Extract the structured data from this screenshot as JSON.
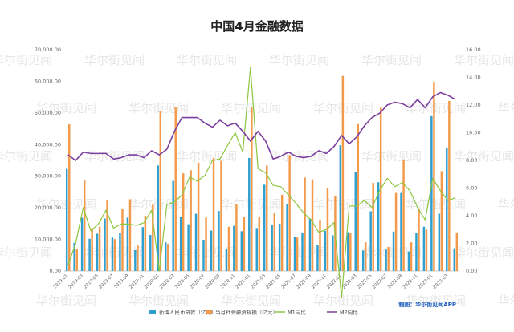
{
  "chart_data": {
    "type": "bar+line",
    "title": "中国4月金融数据",
    "credit": "制图：华尔街见闻APP",
    "watermark": "华尔街见闻",
    "y_left": {
      "ticks": [
        "0.00",
        "10,000.00",
        "20,000.00",
        "30,000.00",
        "40,000.00",
        "50,000.00",
        "60,000.00",
        "70,000.00"
      ],
      "min": 0,
      "max": 70000
    },
    "y_right": {
      "ticks": [
        "0.00",
        "2.00",
        "4.00",
        "6.00",
        "8.00",
        "10.00",
        "12.00",
        "14.00",
        "16.00"
      ],
      "min": 0,
      "max": 16
    },
    "categories": [
      "2019-01",
      "2019-02",
      "2019-03",
      "2019-04",
      "2019-05",
      "2019-06",
      "2019-07",
      "2019-08",
      "2019-09",
      "2019-10",
      "2019-11",
      "2019-12",
      "2020-01",
      "2020-02",
      "2020-03",
      "2020-04",
      "2020-05",
      "2020-06",
      "2020-07",
      "2020-08",
      "2020-09",
      "2020-10",
      "2020-11",
      "2020-12",
      "2021-01",
      "2021-02",
      "2021-03",
      "2021-04",
      "2021-05",
      "2021-06",
      "2021-07",
      "2021-08",
      "2021-09",
      "2021-10",
      "2021-11",
      "2021-12",
      "2022-01",
      "2022-02",
      "2022-03",
      "2022-04",
      "2022-05",
      "2022-06",
      "2022-07",
      "2022-08",
      "2022-09",
      "2022-10",
      "2022-11",
      "2022-12",
      "2023-01",
      "2023-02",
      "2023-03",
      "2023-04"
    ],
    "x_tick_labels": [
      "2019-01",
      "2019-03",
      "2019-05",
      "2019-07",
      "2019-09",
      "2019-11",
      "2020-01",
      "2020-03",
      "2020-05",
      "2020-07",
      "2020-09",
      "2020-11",
      "2021-01",
      "2021-03",
      "2021-05",
      "2021-07",
      "2021-09",
      "2021-11",
      "2022-01",
      "2022-03",
      "2022-05",
      "2022-07",
      "2022-09",
      "2022-11",
      "2023-01",
      "2023-03"
    ],
    "series": [
      {
        "name": "新增人民币贷款（亿元）",
        "type": "bar",
        "axis": "left",
        "color": "#2f9fd0",
        "values": [
          32300,
          8900,
          16900,
          10200,
          11800,
          16600,
          10600,
          12100,
          16900,
          6600,
          13900,
          11400,
          33400,
          9100,
          28500,
          17000,
          14800,
          18100,
          9900,
          12800,
          19000,
          6900,
          14300,
          12600,
          35800,
          13600,
          27300,
          14700,
          15000,
          21200,
          10800,
          12200,
          16600,
          8300,
          12700,
          11300,
          39800,
          12300,
          31300,
          6500,
          18900,
          28100,
          6800,
          12500,
          24700,
          6200,
          12100,
          14000,
          49000,
          18100,
          38900,
          7188
        ],
        "peak": {
          "index": 48,
          "value": 49000
        }
      },
      {
        "name": "当月社会融资规模（亿元）",
        "type": "bar",
        "axis": "left",
        "color": "#f39a4a",
        "values": [
          46400,
          7000,
          28600,
          13600,
          14000,
          22600,
          10100,
          19800,
          22700,
          8100,
          17500,
          21000,
          50700,
          8600,
          51800,
          30900,
          31900,
          34300,
          16900,
          35800,
          34800,
          14000,
          21300,
          17200,
          51700,
          17100,
          33400,
          18500,
          24100,
          36700,
          10600,
          29600,
          29000,
          16200,
          26100,
          23700,
          61700,
          11900,
          46500,
          9100,
          27900,
          51700,
          7600,
          24700,
          35300,
          9100,
          19900,
          13100,
          59800,
          31600,
          53800,
          12200
        ],
        "peak": {
          "index": 36,
          "value": 61700
        }
      },
      {
        "name": "M1同比",
        "type": "line",
        "axis": "right",
        "color": "#8cc63f",
        "values": [
          0.4,
          2.0,
          4.6,
          2.9,
          3.4,
          4.4,
          3.1,
          3.4,
          3.4,
          3.3,
          3.5,
          4.4,
          0.0,
          4.8,
          5.0,
          5.5,
          6.8,
          6.5,
          6.9,
          8.0,
          8.1,
          9.1,
          10.0,
          8.6,
          14.7,
          7.4,
          7.1,
          6.2,
          6.1,
          5.5,
          4.9,
          4.2,
          3.7,
          2.8,
          3.0,
          3.5,
          -1.9,
          4.7,
          4.7,
          5.1,
          4.6,
          5.8,
          6.7,
          6.1,
          6.4,
          5.8,
          4.6,
          3.7,
          6.7,
          5.8,
          5.1,
          5.3
        ]
      },
      {
        "name": "M2同比",
        "type": "line",
        "axis": "right",
        "color": "#7b3fa0",
        "values": [
          8.4,
          8.0,
          8.6,
          8.5,
          8.5,
          8.5,
          8.1,
          8.2,
          8.4,
          8.4,
          8.2,
          8.7,
          8.4,
          8.8,
          10.1,
          11.1,
          11.1,
          11.1,
          10.7,
          10.4,
          10.9,
          10.5,
          10.7,
          10.1,
          9.4,
          10.1,
          9.4,
          8.1,
          8.3,
          8.6,
          8.3,
          8.2,
          8.3,
          8.7,
          8.5,
          9.0,
          9.8,
          9.2,
          9.7,
          10.5,
          11.1,
          11.4,
          12.0,
          12.2,
          12.1,
          11.8,
          12.4,
          11.8,
          12.6,
          12.9,
          12.7,
          12.4
        ]
      }
    ],
    "legend_position": "bottom",
    "grid": false
  }
}
